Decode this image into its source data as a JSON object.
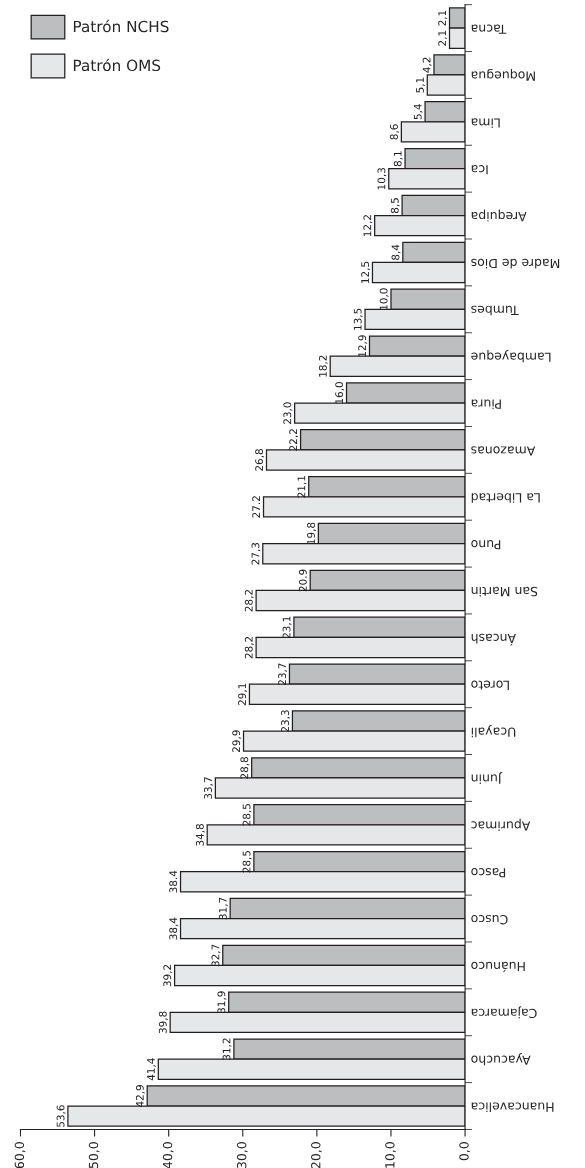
{
  "chart_data": {
    "type": "bar",
    "orientation": "horizontal",
    "categories": [
      "Tacna",
      "Moquegua",
      "Lima",
      "Ica",
      "Arequipa",
      "Madre de Dios",
      "Tumbes",
      "Lambayeque",
      "Piura",
      "Amazonas",
      "La Libertad",
      "Puno",
      "San Martin",
      "Áncash",
      "Loreto",
      "Ucayali",
      "Junin",
      "Apurimac",
      "Pasco",
      "Cusco",
      "Huánuco",
      "Cajamarca",
      "Ayacucho",
      "Huancavelica"
    ],
    "series": [
      {
        "name": "Patrón NCHS",
        "color": "#bcbec0",
        "values": [
          2.1,
          4.2,
          5.4,
          8.1,
          8.5,
          8.4,
          10.0,
          12.9,
          16.0,
          22.2,
          21.1,
          19.8,
          20.9,
          23.1,
          23.7,
          23.3,
          28.8,
          28.5,
          28.5,
          31.7,
          32.7,
          31.9,
          31.2,
          42.9
        ],
        "value_labels": [
          "2,1",
          "4,2",
          "5,4",
          "8,1",
          "8,5",
          "8,4",
          "10,0",
          "12,9",
          "16,0",
          "22,2",
          "21,1",
          "19,8",
          "20.9",
          "23,1",
          "23,7",
          "23,3",
          "28,8",
          "28,5",
          "28,5",
          "31,7",
          "32,7",
          "31,9",
          "31,2",
          "42,9"
        ]
      },
      {
        "name": "Patrón OMS",
        "color": "#e6e7e8",
        "values": [
          2.1,
          5.1,
          8.6,
          10.3,
          12.2,
          12.5,
          13.5,
          18.2,
          23.0,
          26.8,
          27.2,
          27.3,
          28.2,
          28.2,
          29.1,
          29.9,
          33.7,
          34.8,
          38.4,
          38.4,
          39.2,
          39.8,
          41.4,
          53.6
        ],
        "value_labels": [
          "2,1",
          "5,1",
          "8,6",
          "10,3",
          "12,2",
          "12,5",
          "13,5",
          "18,2",
          "23,0",
          "26,8",
          "27.2",
          "27,3",
          "28,2",
          "28,2",
          "29,1",
          "29,9",
          "33,7",
          "34,8",
          "38.4",
          "38,4",
          "39,2",
          "39,8",
          "41,4",
          "53,6"
        ]
      }
    ],
    "xlim": [
      60,
      0
    ],
    "xticks": [
      {
        "value": 60,
        "label": "60,0"
      },
      {
        "value": 50,
        "label": "50,0"
      },
      {
        "value": 40,
        "label": "40,0"
      },
      {
        "value": 30,
        "label": "30,0"
      },
      {
        "value": 20,
        "label": "20,0"
      },
      {
        "value": 10,
        "label": "10,0"
      },
      {
        "value": 0,
        "label": "0,0"
      }
    ],
    "grid": false,
    "legend": "top left"
  }
}
